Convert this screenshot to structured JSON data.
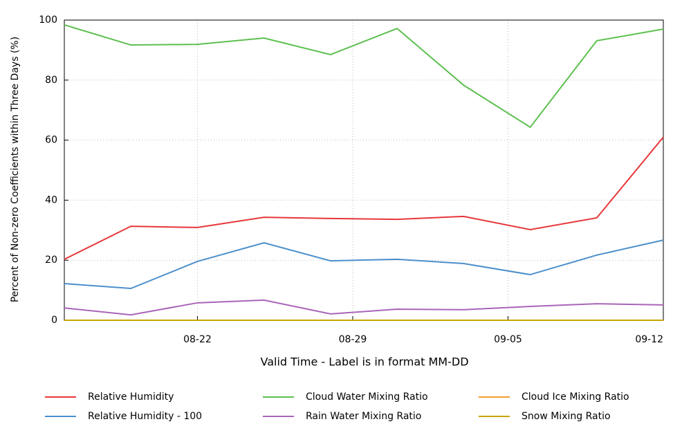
{
  "chart_data": {
    "type": "line",
    "x_label": "Valid Time - Label is in format MM-DD",
    "y_label": "Percent of Non-zero Coefficients within Three Days (%)",
    "x": [
      "08-16",
      "08-19",
      "08-22",
      "08-25",
      "08-28",
      "08-31",
      "09-03",
      "09-06",
      "09-09",
      "09-12"
    ],
    "xlim": [
      "08-16",
      "09-12"
    ],
    "xticks": [
      "08-22",
      "08-29",
      "09-05",
      "09-12"
    ],
    "ylim": [
      0,
      100
    ],
    "yticks": [
      0,
      20,
      40,
      60,
      80,
      100
    ],
    "grid": true,
    "series": [
      {
        "name": "Relative Humidity",
        "color": "#e8363a",
        "values": [
          20.3,
          31.3,
          30.9,
          34.3,
          33.9,
          33.6,
          34.6,
          30.2,
          34.1,
          61
        ]
      },
      {
        "name": "Relative Humidity - 100",
        "color": "#4a8fcb",
        "values": [
          12.2,
          10.6,
          19.6,
          25.8,
          19.8,
          20.3,
          18.9,
          15.2,
          21.7,
          26.7
        ]
      },
      {
        "name": "Cloud Water Mixing Ratio",
        "color": "#5cbf4e",
        "values": [
          98.4,
          91.7,
          91.9,
          94,
          88.5,
          97.2,
          78.3,
          64.3,
          93.1,
          97
        ]
      },
      {
        "name": "Rain Water Mixing Ratio",
        "color": "#a964b9",
        "values": [
          4.1,
          1.8,
          5.8,
          6.7,
          2.1,
          3.7,
          3.5,
          4.6,
          5.5,
          5.1
        ]
      },
      {
        "name": "Cloud Ice Mixing Ratio",
        "color": "#f39c2a",
        "values": [
          0,
          0,
          0,
          0,
          0,
          0,
          0,
          0,
          0,
          0
        ]
      },
      {
        "name": "Snow Mixing Ratio",
        "color": "#c9a400",
        "values": [
          0,
          0,
          0,
          0,
          0,
          0,
          0,
          0,
          0,
          0
        ]
      }
    ]
  }
}
